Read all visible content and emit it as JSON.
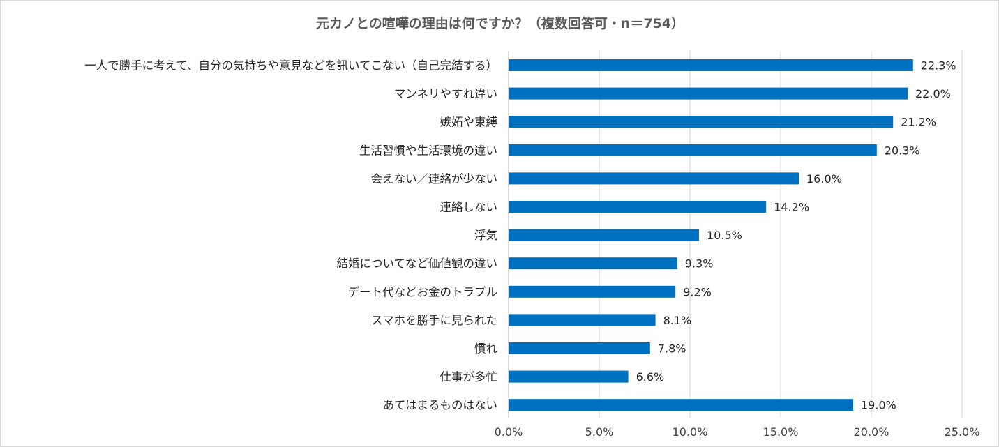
{
  "chart_data": {
    "type": "bar",
    "orientation": "horizontal",
    "title": "元カノとの喧嘩の理由は何ですか？（複数回答可・n＝754）",
    "xlabel": "",
    "ylabel": "",
    "xlim": [
      0,
      25
    ],
    "x_ticks": [
      "0.0%",
      "5.0%",
      "10.0%",
      "15.0%",
      "20.0%",
      "25.0%"
    ],
    "x_tick_values": [
      0,
      5,
      10,
      15,
      20,
      25
    ],
    "grid": true,
    "legend": "none",
    "bar_color": "#0070c0",
    "categories": [
      "一人で勝手に考えて、自分の気持ちや意見などを訊いてこない（自己完結する）",
      "マンネリやすれ違い",
      "嫉妬や束縛",
      "生活習慣や生活環境の違い",
      "会えない／連絡が少ない",
      "連絡しない",
      "浮気",
      "結婚についてなど価値観の違い",
      "デート代などお金のトラブル",
      "スマホを勝手に見られた",
      "慣れ",
      "仕事が多忙",
      "あてはまるものはない"
    ],
    "values": [
      22.3,
      22.0,
      21.2,
      20.3,
      16.0,
      14.2,
      10.5,
      9.3,
      9.2,
      8.1,
      7.8,
      6.6,
      19.0
    ],
    "value_labels": [
      "22.3%",
      "22.0%",
      "21.2%",
      "20.3%",
      "16.0%",
      "14.2%",
      "10.5%",
      "9.3%",
      "9.2%",
      "8.1%",
      "7.8%",
      "6.6%",
      "19.0%"
    ]
  }
}
